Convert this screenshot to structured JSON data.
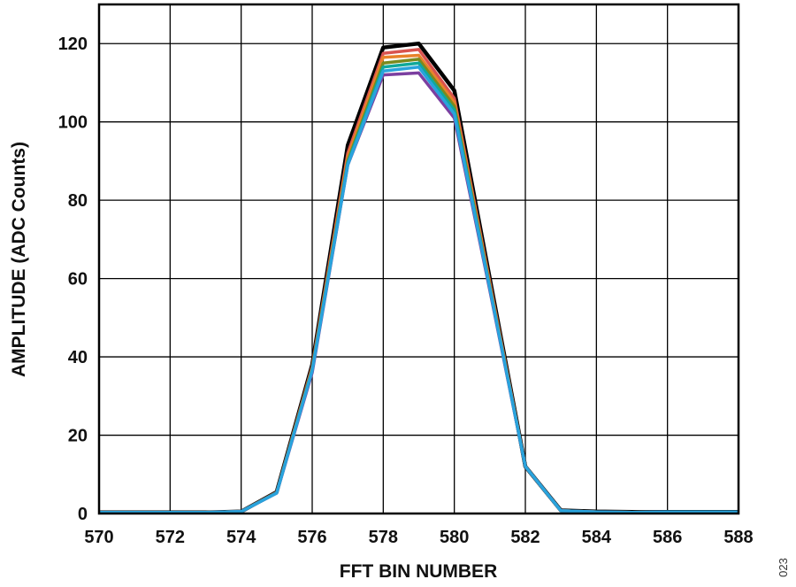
{
  "chart_data": {
    "type": "line",
    "title": "",
    "xlabel": "FFT BIN NUMBER",
    "ylabel": "AMPLITUDE (ADC Counts)",
    "xlim": [
      570,
      588
    ],
    "ylim": [
      0,
      130
    ],
    "xticks": [
      570,
      572,
      574,
      576,
      578,
      580,
      582,
      584,
      586,
      588
    ],
    "yticks": [
      0,
      20,
      40,
      60,
      80,
      100,
      120
    ],
    "grid": true,
    "x": [
      570,
      571,
      572,
      573,
      574,
      575,
      576,
      577,
      578,
      579,
      580,
      581,
      582,
      583,
      584,
      585,
      586,
      587,
      588
    ],
    "series": [
      {
        "color": "#000000",
        "values": [
          0.3,
          0.3,
          0.3,
          0.3,
          0.5,
          5.5,
          38,
          94,
          119,
          120,
          108,
          60,
          12,
          0.8,
          0.5,
          0.4,
          0.4,
          0.4,
          0.4
        ]
      },
      {
        "color": "#d9534f",
        "values": [
          0.3,
          0.3,
          0.3,
          0.3,
          0.5,
          5.4,
          37.5,
          92,
          117.5,
          118.5,
          106,
          59,
          12,
          0.7,
          0.4,
          0.3,
          0.4,
          0.4,
          0.4
        ]
      },
      {
        "color": "#e8822a",
        "values": [
          0.3,
          0.3,
          0.3,
          0.3,
          0.5,
          5.3,
          37,
          91,
          116.5,
          117,
          105,
          58.5,
          12,
          0.7,
          0.4,
          0.3,
          0.4,
          0.4,
          0.4
        ]
      },
      {
        "color": "#7a8a1e",
        "values": [
          0.3,
          0.3,
          0.3,
          0.3,
          0.5,
          5.3,
          37,
          90,
          115,
          116,
          104,
          58,
          12,
          0.7,
          0.4,
          0.3,
          0.4,
          0.4,
          0.4
        ]
      },
      {
        "color": "#10a89a",
        "values": [
          0.3,
          0.3,
          0.3,
          0.3,
          0.5,
          5.3,
          36.5,
          89.5,
          114,
          115,
          103,
          57.5,
          12,
          0.7,
          0.4,
          0.3,
          0.4,
          0.4,
          0.4
        ]
      },
      {
        "color": "#7b3fa0",
        "values": [
          0.3,
          0.3,
          0.3,
          0.3,
          0.5,
          5.2,
          36,
          89,
          112,
          112.5,
          101,
          57,
          12,
          0.7,
          0.4,
          0.3,
          0.4,
          0.4,
          0.4
        ]
      },
      {
        "color": "#29a3dc",
        "values": [
          0.3,
          0.3,
          0.3,
          0.3,
          0.5,
          5.2,
          36.5,
          89,
          113,
          114,
          102,
          57.5,
          12,
          0.7,
          0.4,
          0.3,
          0.4,
          0.4,
          0.4
        ]
      }
    ]
  },
  "figure_number": "023"
}
